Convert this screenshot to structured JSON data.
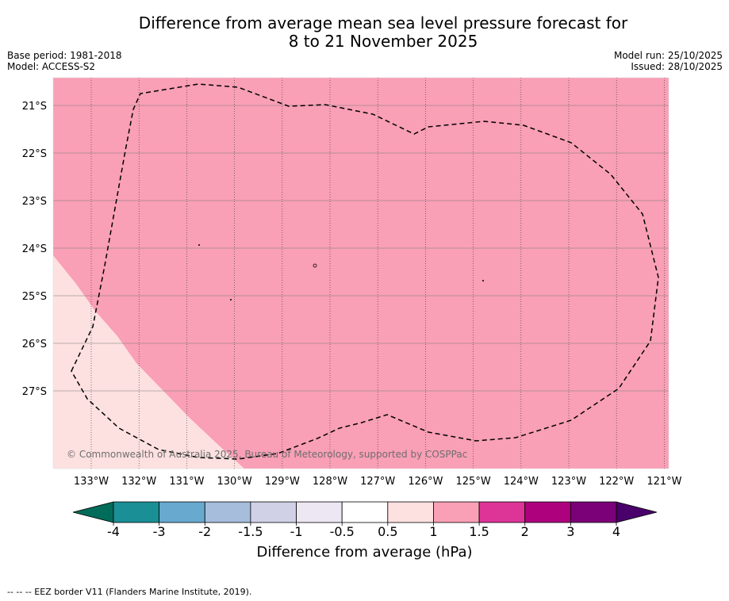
{
  "title": {
    "line1": "Difference from average mean sea level pressure forecast for",
    "line2": "8 to 21 November 2025"
  },
  "meta": {
    "base_period": "Base period: 1981-2018",
    "model": "Model: ACCESS-S2",
    "model_run": "Model run: 25/10/2025",
    "issued": "Issued: 28/10/2025"
  },
  "map": {
    "lat_labels": [
      "21°S",
      "22°S",
      "23°S",
      "24°S",
      "25°S",
      "26°S",
      "27°S"
    ],
    "lon_labels": [
      "133°W",
      "132°W",
      "131°W",
      "130°W",
      "129°W",
      "128°W",
      "127°W",
      "126°W",
      "125°W",
      "124°W",
      "123°W",
      "122°W",
      "121°W"
    ],
    "copyright": "© Commonwealth of Australia 2025, Bureau of Meteorology, supported by COSPPac",
    "colors": {
      "main_fill": "#f99fb6",
      "light_fill": "#fde0e0",
      "gridline": "#7a7a7a"
    }
  },
  "colorbar": {
    "ticks": [
      "-4",
      "-3",
      "-2",
      "-1.5",
      "-1",
      "-0.5",
      "0.5",
      "1",
      "1.5",
      "2",
      "3",
      "4"
    ],
    "colors": [
      "#1a8f96",
      "#67a9cf",
      "#a6bddb",
      "#d0d1e6",
      "#ece7f2",
      "#ffffff",
      "#fde0e0",
      "#f99fb6",
      "#dd3497",
      "#ae017e",
      "#7a0177"
    ],
    "min_color": "#016c59",
    "max_color": "#49006a",
    "label": "Difference from average (hPa)"
  },
  "footnote": "-- -- -- EEZ border V11 (Flanders Marine Institute, 2019)."
}
